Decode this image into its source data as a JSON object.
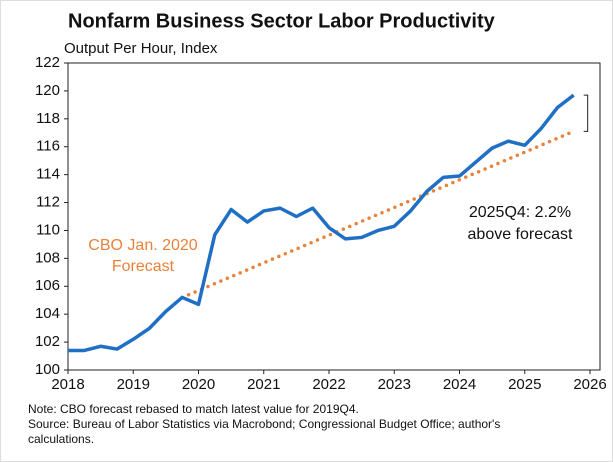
{
  "chart_data": {
    "type": "line",
    "title": "Nonfarm Business Sector Labor Productivity",
    "subtitle": "Output Per Hour, Index",
    "x": [
      2018,
      2018.25,
      2018.5,
      2018.75,
      2019,
      2019.25,
      2019.5,
      2019.75,
      2020,
      2020.25,
      2020.5,
      2020.75,
      2021,
      2021.25,
      2021.5,
      2021.75,
      2022,
      2022.25,
      2022.5,
      2022.75,
      2023,
      2023.25,
      2023.5,
      2023.75,
      2024,
      2024.25,
      2024.5,
      2024.75,
      2025,
      2025.25,
      2025.5,
      2025.75
    ],
    "series": [
      {
        "name": "Output Per Hour",
        "color": "#1f6fc5",
        "values": [
          101.4,
          101.4,
          101.7,
          101.5,
          102.2,
          103.0,
          104.2,
          105.2,
          104.7,
          109.7,
          111.5,
          110.6,
          111.4,
          111.6,
          111.0,
          111.6,
          110.2,
          109.4,
          109.5,
          110.0,
          110.3,
          111.4,
          112.8,
          113.8,
          113.9,
          114.9,
          115.9,
          116.4,
          116.1,
          117.3,
          118.8,
          119.7
        ]
      }
    ],
    "forecast": {
      "color": "#e8823a",
      "x": [
        2019.75,
        2025.75
      ],
      "values": [
        105.2,
        117.1
      ]
    },
    "annotations": {
      "forecast_label": [
        "CBO Jan. 2020",
        "Forecast"
      ],
      "gap_label": [
        "2025Q4: 2.2%",
        "above forecast"
      ]
    },
    "xlim": [
      2018,
      2026
    ],
    "xticks": [
      2018,
      2019,
      2020,
      2021,
      2022,
      2023,
      2024,
      2025,
      2026
    ],
    "ylim": [
      100,
      122
    ],
    "yticks": [
      100,
      102,
      104,
      106,
      108,
      110,
      112,
      114,
      116,
      118,
      120,
      122
    ],
    "notes": [
      "Note: CBO forecast rebased to match latest value for 2019Q4.",
      "Source: Bureau of Labor Statistics via Macrobond; Congressional Budget Office; author's",
      "calculations."
    ]
  }
}
